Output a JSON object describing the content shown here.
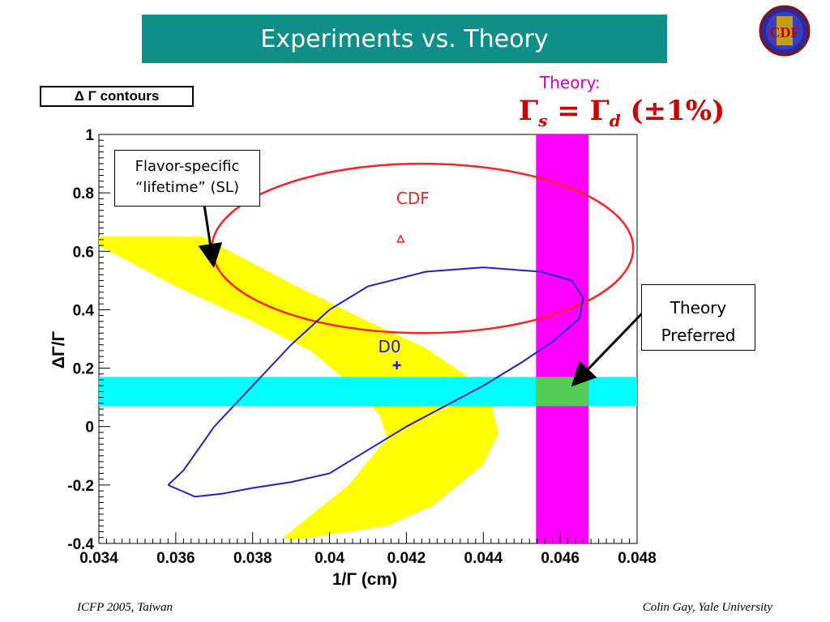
{
  "slide": {
    "title": "Experiments vs. Theory",
    "logo_text": "CDF",
    "contour_label": "Δ Γ contours",
    "theory_label": "Theory:",
    "theory_equation": "Γ",
    "theory_sub_s": "s",
    "theory_mid": " = Γ",
    "theory_sub_d": "d",
    "theory_tail": " (±1%)",
    "note_flavor_line1": "Flavor-specific",
    "note_flavor_line2": "“lifetime” (SL)",
    "note_theory_line1": "Theory",
    "note_theory_line2": "Preferred",
    "footer_left": "ICFP 2005, Taiwan",
    "footer_right": "Colin Gay, Yale University"
  },
  "colors": {
    "title_bg": "#108f88",
    "band_yellow": "#ffff00",
    "band_cyan": "#00ffff",
    "band_magenta": "#ff00ff",
    "overlap_green": "#55cc55",
    "cdf_red": "#ff2020",
    "d0_blue": "#2020d0"
  },
  "chart_data": {
    "type": "scatter",
    "xlabel": "1/Γ  (cm)",
    "ylabel": "ΔΓ/Γ",
    "xlim": [
      0.034,
      0.048
    ],
    "ylim": [
      -0.4,
      1.0
    ],
    "x_ticks": [
      "0.034",
      "0.036",
      "0.038",
      "0.04",
      "0.042",
      "0.044",
      "0.046",
      "0.048"
    ],
    "y_ticks": [
      "-0.4",
      "-0.2",
      "0",
      "0.2",
      "0.4",
      "0.6",
      "0.8",
      "1"
    ],
    "points": [
      {
        "name": "CDF",
        "x": 0.04185,
        "y": 0.64,
        "marker": "triangle"
      },
      {
        "name": "D0",
        "x": 0.04175,
        "y": 0.21,
        "marker": "cross"
      }
    ],
    "cdf_contour": {
      "center": [
        0.04242,
        0.61
      ],
      "radius_x": 0.00548,
      "radius_y": 0.29
    },
    "d0_contour": [
      [
        0.0358,
        -0.2
      ],
      [
        0.0365,
        -0.24
      ],
      [
        0.0372,
        -0.23
      ],
      [
        0.038,
        -0.21
      ],
      [
        0.039,
        -0.19
      ],
      [
        0.04,
        -0.16
      ],
      [
        0.041,
        -0.08
      ],
      [
        0.042,
        0.0
      ],
      [
        0.043,
        0.07
      ],
      [
        0.044,
        0.14
      ],
      [
        0.045,
        0.22
      ],
      [
        0.0458,
        0.29
      ],
      [
        0.0465,
        0.37
      ],
      [
        0.0466,
        0.44
      ],
      [
        0.0463,
        0.5
      ],
      [
        0.0455,
        0.53
      ],
      [
        0.044,
        0.545
      ],
      [
        0.0425,
        0.53
      ],
      [
        0.041,
        0.48
      ],
      [
        0.04,
        0.4
      ],
      [
        0.039,
        0.28
      ],
      [
        0.038,
        0.14
      ],
      [
        0.037,
        0.0
      ],
      [
        0.0362,
        -0.15
      ],
      [
        0.0358,
        -0.2
      ]
    ],
    "flavor_band": [
      [
        0.034,
        0.65
      ],
      [
        0.0367,
        0.65
      ],
      [
        0.039,
        0.49
      ],
      [
        0.041,
        0.36
      ],
      [
        0.0425,
        0.27
      ],
      [
        0.0436,
        0.17
      ],
      [
        0.0442,
        0.08
      ],
      [
        0.0444,
        -0.02
      ],
      [
        0.044,
        -0.13
      ],
      [
        0.0427,
        -0.27
      ],
      [
        0.0415,
        -0.34
      ],
      [
        0.039,
        -0.39
      ],
      [
        0.0388,
        -0.38
      ],
      [
        0.0405,
        -0.2
      ],
      [
        0.0415,
        -0.04
      ],
      [
        0.0413,
        0.04
      ],
      [
        0.0406,
        0.14
      ],
      [
        0.0395,
        0.26
      ],
      [
        0.038,
        0.36
      ],
      [
        0.036,
        0.48
      ],
      [
        0.034,
        0.62
      ]
    ],
    "theory_x_band": [
      0.04537,
      0.04674
    ],
    "theory_y_band": [
      0.07,
      0.17
    ]
  }
}
